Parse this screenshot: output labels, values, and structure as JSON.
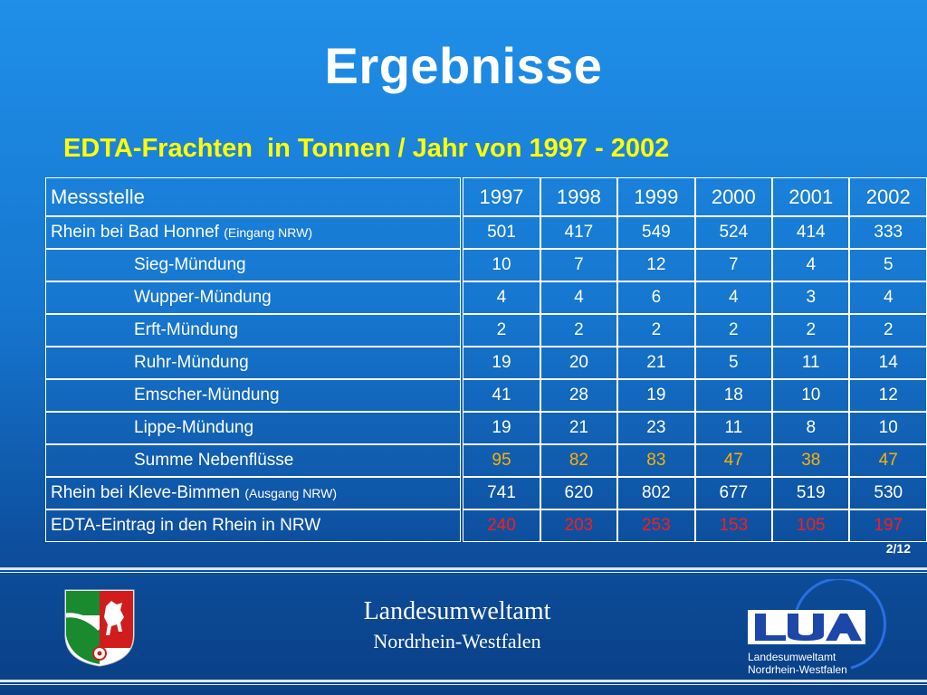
{
  "title": "Ergebnisse",
  "subtitle": "EDTA-Frachten  in Tonnen / Jahr von 1997 - 2002",
  "table": {
    "header": {
      "label": "Messstelle",
      "years": [
        "1997",
        "1998",
        "1999",
        "2000",
        "2001",
        "2002"
      ]
    },
    "rows": [
      {
        "label": "Rhein bei Bad Honnef",
        "note": "(Eingang NRW)",
        "values": [
          "501",
          "417",
          "549",
          "524",
          "414",
          "333"
        ]
      },
      {
        "label": "Sieg-Mündung",
        "values": [
          "10",
          "7",
          "12",
          "7",
          "4",
          "5"
        ]
      },
      {
        "label": "Wupper-Mündung",
        "values": [
          "4",
          "4",
          "6",
          "4",
          "3",
          "4"
        ]
      },
      {
        "label": "Erft-Mündung",
        "values": [
          "2",
          "2",
          "2",
          "2",
          "2",
          "2"
        ]
      },
      {
        "label": "Ruhr-Mündung",
        "values": [
          "19",
          "20",
          "21",
          "5",
          "11",
          "14"
        ]
      },
      {
        "label": "Emscher-Mündung",
        "values": [
          "41",
          "28",
          "19",
          "18",
          "10",
          "12"
        ]
      },
      {
        "label": "Lippe-Mündung",
        "values": [
          "19",
          "21",
          "23",
          "11",
          "8",
          "10"
        ]
      },
      {
        "label": "Summe Nebenflüsse",
        "values": [
          "95",
          "82",
          "83",
          "47",
          "38",
          "47"
        ]
      },
      {
        "label": "Rhein bei Kleve-Bimmen",
        "note": "(Ausgang NRW)",
        "values": [
          "741",
          "620",
          "802",
          "677",
          "519",
          "530"
        ]
      },
      {
        "label": "EDTA-Eintrag in den Rhein in NRW",
        "values": [
          "240",
          "203",
          "253",
          "153",
          "105",
          "197"
        ]
      }
    ]
  },
  "page_number": "2/12",
  "footer": {
    "line1": "Landesumweltamt",
    "line2": "Nordrhein-Westfalen"
  },
  "logo": {
    "text1": "Landesumweltamt",
    "text2": "Nordrhein-Westfalen"
  },
  "colors": {
    "subtitle": "#ffff00",
    "sum_row": "#ffb000",
    "total_row": "#ff1a1a"
  }
}
